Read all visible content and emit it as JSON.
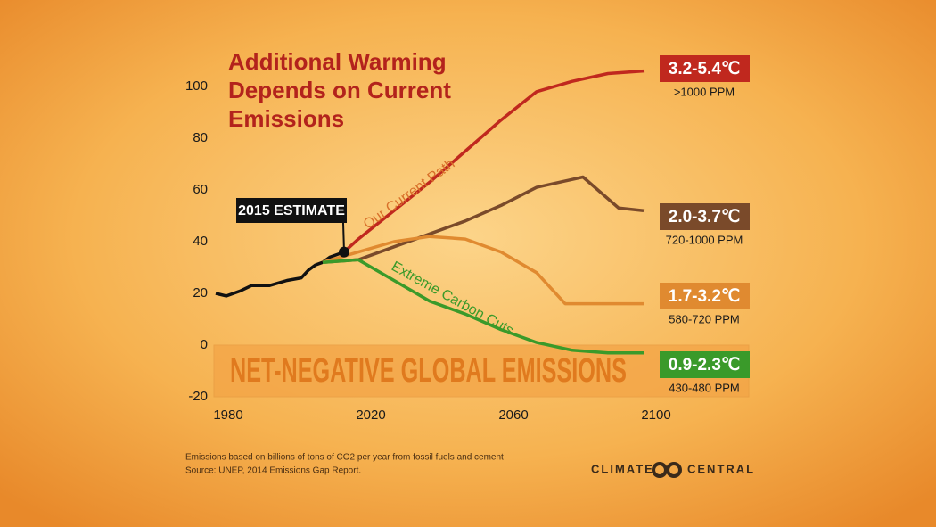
{
  "chart_data": {
    "type": "line",
    "title": [
      "Additional Warming",
      "Depends on Current",
      "Emissions"
    ],
    "xlim": [
      1980,
      2100
    ],
    "ylim": [
      -20,
      100
    ],
    "xticks": [
      1980,
      2020,
      2060,
      2100
    ],
    "yticks": [
      -20,
      0,
      20,
      40,
      60,
      80,
      100
    ],
    "grid": false,
    "annotations": {
      "estimate": "2015 ESTIMATE",
      "band": "NET-NEGATIVE GLOBAL EMISSIONS"
    },
    "series": [
      {
        "color": "#111111",
        "x": [
          1980,
          1983,
          1987,
          1990,
          1995,
          2000,
          2004,
          2006,
          2008,
          2010,
          2012,
          2014,
          2016
        ],
        "values": [
          20,
          19,
          21,
          23,
          23,
          25,
          26,
          29,
          31,
          32,
          34,
          35,
          36
        ]
      },
      {
        "name": "Our Current Path",
        "color": "#c0281e",
        "range": "3.2-5.4℃",
        "ppm": ">1000 PPM",
        "x": [
          2016,
          2020,
          2030,
          2040,
          2050,
          2060,
          2070,
          2080,
          2090,
          2100
        ],
        "values": [
          36,
          41,
          52,
          63,
          75,
          87,
          98,
          102,
          105,
          106
        ]
      },
      {
        "color": "#7a4a2a",
        "range": "2.0-3.7℃",
        "ppm": "720-1000 PPM",
        "x": [
          2010,
          2020,
          2030,
          2040,
          2050,
          2060,
          2070,
          2083,
          2093,
          2100
        ],
        "values": [
          32,
          33,
          38,
          43,
          48,
          54,
          61,
          65,
          53,
          52
        ]
      },
      {
        "color": "#e08a30",
        "range": "1.7-3.2℃",
        "ppm": "580-720 PPM",
        "x": [
          2010,
          2020,
          2030,
          2040,
          2050,
          2060,
          2070,
          2078,
          2100
        ],
        "values": [
          32,
          36,
          40,
          42,
          41,
          36,
          28,
          16,
          16
        ]
      },
      {
        "name": "Extreme Carbon Cuts",
        "color": "#3a9a2a",
        "range": "0.9-2.3℃",
        "ppm": "430-480 PPM",
        "x": [
          2010,
          2020,
          2030,
          2040,
          2050,
          2060,
          2070,
          2080,
          2090,
          2100
        ],
        "values": [
          32,
          33,
          25,
          17,
          12,
          6,
          1,
          -2,
          -3,
          -3
        ]
      }
    ],
    "notes": [
      "Emissions based on billions of tons of CO2 per year from fossil fuels and cement",
      "Source: UNEP, 2014 Emissions Gap Report."
    ],
    "logo": [
      "CLIMATE",
      "CENTRAL"
    ]
  }
}
